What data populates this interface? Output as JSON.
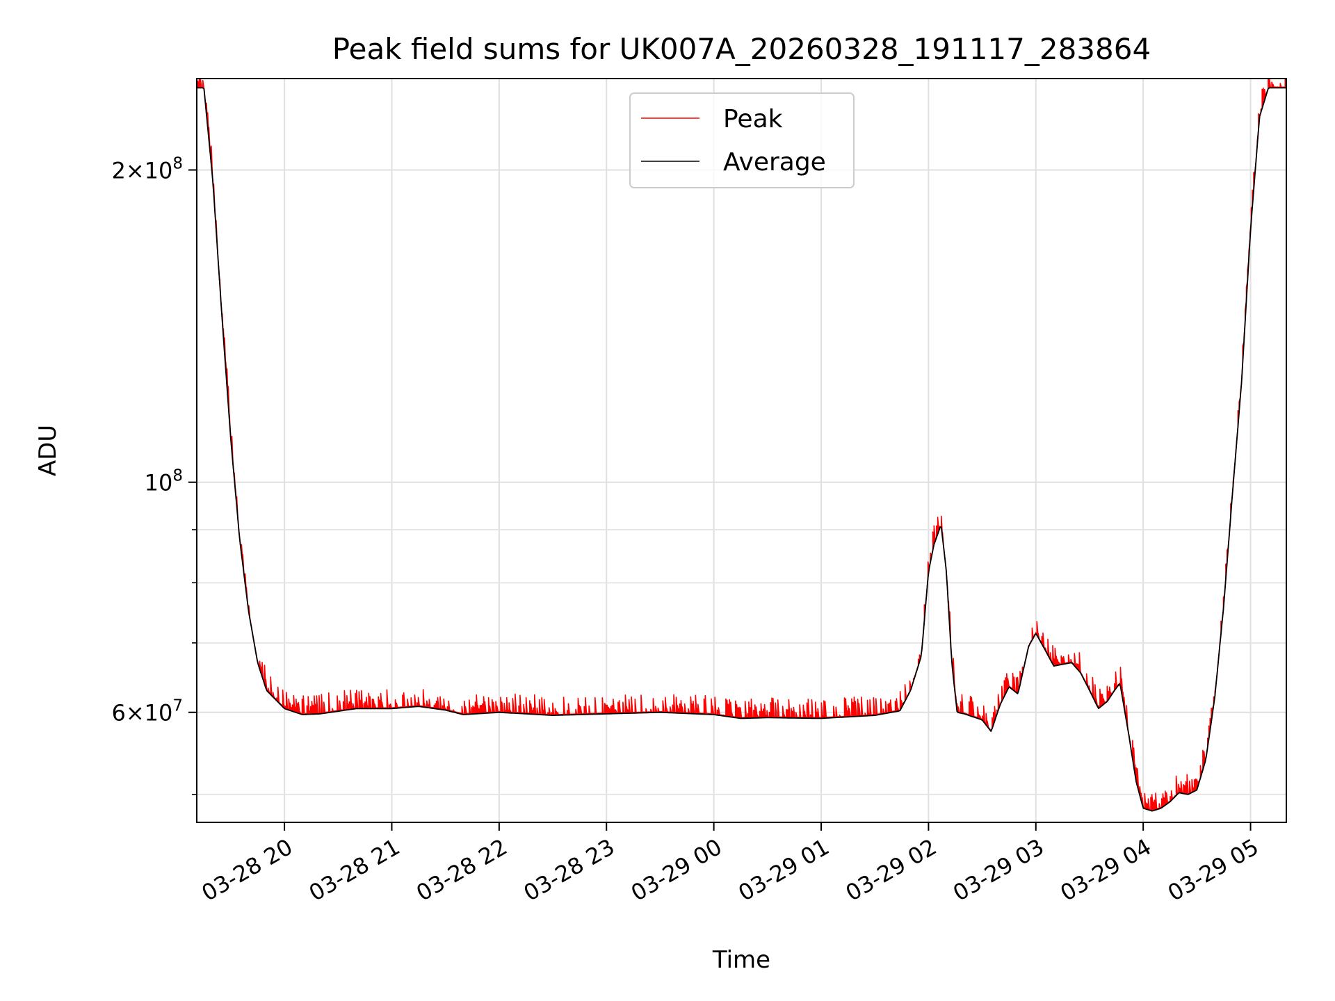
{
  "chart_data": {
    "type": "line",
    "title": "Peak field sums for UK007A_20260328_191117_283864",
    "xlabel": "Time",
    "ylabel": "ADU",
    "yscale": "log",
    "ylim": [
      47000000,
      245000000
    ],
    "xlim": [
      "2026-03-28 19:11",
      "2026-03-29 05:20"
    ],
    "x_ticks": [
      {
        "t": "2026-03-28 20:00",
        "label": "03-28 20"
      },
      {
        "t": "2026-03-28 21:00",
        "label": "03-28 21"
      },
      {
        "t": "2026-03-28 22:00",
        "label": "03-28 22"
      },
      {
        "t": "2026-03-28 23:00",
        "label": "03-28 23"
      },
      {
        "t": "2026-03-29 00:00",
        "label": "03-29 00"
      },
      {
        "t": "2026-03-29 01:00",
        "label": "03-29 01"
      },
      {
        "t": "2026-03-29 02:00",
        "label": "03-29 02"
      },
      {
        "t": "2026-03-29 03:00",
        "label": "03-29 03"
      },
      {
        "t": "2026-03-29 04:00",
        "label": "03-29 04"
      },
      {
        "t": "2026-03-29 05:00",
        "label": "03-29 05"
      }
    ],
    "y_major_ticks": [
      {
        "value": 60000000,
        "mant": "6",
        "exp": "7"
      },
      {
        "value": 100000000,
        "mant": "",
        "exp": "8"
      },
      {
        "value": 200000000,
        "mant": "2",
        "exp": "8"
      }
    ],
    "y_minor_ticks": [
      50000000,
      70000000,
      80000000,
      90000000
    ],
    "grid": true,
    "legend_position": "top-center",
    "series": [
      {
        "name": "Peak",
        "color": "#ff0000",
        "noisy": true
      },
      {
        "name": "Average",
        "color": "#000000",
        "noisy": false
      }
    ],
    "x": [
      "2026-03-28 19:11",
      "2026-03-28 19:15",
      "2026-03-28 19:20",
      "2026-03-28 19:25",
      "2026-03-28 19:30",
      "2026-03-28 19:35",
      "2026-03-28 19:40",
      "2026-03-28 19:45",
      "2026-03-28 19:50",
      "2026-03-28 20:00",
      "2026-03-28 20:10",
      "2026-03-28 20:20",
      "2026-03-28 20:40",
      "2026-03-28 21:00",
      "2026-03-28 21:15",
      "2026-03-28 21:30",
      "2026-03-28 21:40",
      "2026-03-28 22:00",
      "2026-03-28 22:30",
      "2026-03-28 23:00",
      "2026-03-28 23:30",
      "2026-03-29 00:00",
      "2026-03-29 00:15",
      "2026-03-29 00:30",
      "2026-03-29 01:00",
      "2026-03-29 01:30",
      "2026-03-29 01:44",
      "2026-03-29 01:50",
      "2026-03-29 01:56",
      "2026-03-29 02:00",
      "2026-03-29 02:03",
      "2026-03-29 02:07",
      "2026-03-29 02:10",
      "2026-03-29 02:13",
      "2026-03-29 02:16",
      "2026-03-29 02:20",
      "2026-03-29 02:30",
      "2026-03-29 02:35",
      "2026-03-29 02:40",
      "2026-03-29 02:45",
      "2026-03-29 02:50",
      "2026-03-29 02:56",
      "2026-03-29 03:00",
      "2026-03-29 03:05",
      "2026-03-29 03:10",
      "2026-03-29 03:20",
      "2026-03-29 03:25",
      "2026-03-29 03:30",
      "2026-03-29 03:35",
      "2026-03-29 03:40",
      "2026-03-29 03:44",
      "2026-03-29 03:47",
      "2026-03-29 03:52",
      "2026-03-29 03:56",
      "2026-03-29 04:00",
      "2026-03-29 04:05",
      "2026-03-29 04:10",
      "2026-03-29 04:15",
      "2026-03-29 04:20",
      "2026-03-29 04:25",
      "2026-03-29 04:30",
      "2026-03-29 04:35",
      "2026-03-29 04:40",
      "2026-03-29 04:45",
      "2026-03-29 04:50",
      "2026-03-29 04:55",
      "2026-03-29 05:00",
      "2026-03-29 05:05",
      "2026-03-29 05:10",
      "2026-03-29 05:20"
    ],
    "average_values": [
      240000000,
      240000000,
      195000000,
      145000000,
      110000000,
      88000000,
      75000000,
      67000000,
      63000000,
      60500000,
      59700000,
      59800000,
      60500000,
      60500000,
      60800000,
      60300000,
      59700000,
      60000000,
      59600000,
      59800000,
      60000000,
      59700000,
      59200000,
      59300000,
      59200000,
      59600000,
      60200000,
      63000000,
      68000000,
      82000000,
      87000000,
      91000000,
      82000000,
      67000000,
      60000000,
      59800000,
      59000000,
      57500000,
      61000000,
      63500000,
      62500000,
      69500000,
      71500000,
      69000000,
      66500000,
      67000000,
      65500000,
      63000000,
      60500000,
      61500000,
      63000000,
      64000000,
      57000000,
      51500000,
      48500000,
      48200000,
      48500000,
      49200000,
      50200000,
      50000000,
      50500000,
      54000000,
      62000000,
      76000000,
      98000000,
      125000000,
      175000000,
      225000000,
      240000000,
      240000000
    ]
  }
}
